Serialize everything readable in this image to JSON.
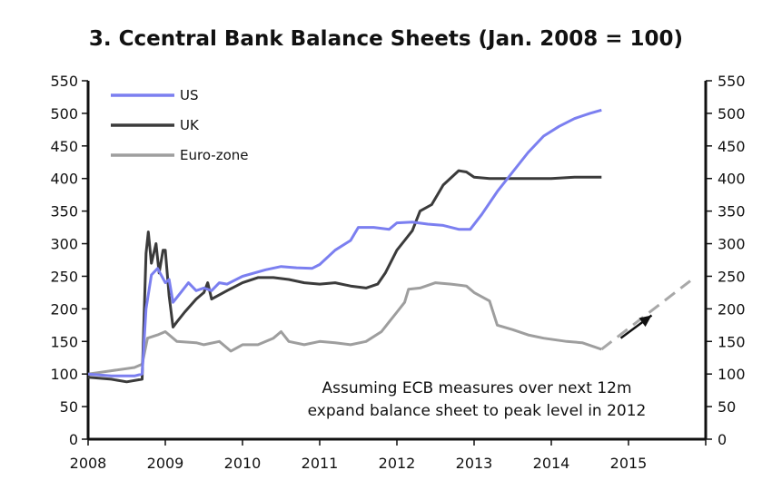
{
  "chart_data": {
    "type": "line",
    "title": "3. Ccentral Bank Balance Sheets (Jan. 2008 = 100)",
    "xlabel": "",
    "ylabel": "",
    "xlim": [
      2008,
      2016
    ],
    "ylim": [
      0,
      550
    ],
    "x_ticks": [
      "2008",
      "2009",
      "2010",
      "2011",
      "2012",
      "2013",
      "2014",
      "2015"
    ],
    "y_ticks": [
      "0",
      "50",
      "100",
      "150",
      "200",
      "250",
      "300",
      "350",
      "400",
      "450",
      "500",
      "550"
    ],
    "y_ticks_right": [
      "0",
      "50",
      "100",
      "150",
      "200",
      "250",
      "300",
      "350",
      "400",
      "450",
      "500",
      "550"
    ],
    "legend_position": "top-left",
    "grid": false,
    "series": [
      {
        "name": "US",
        "color": "#7b7ff0",
        "style": "solid",
        "points": [
          [
            2008.0,
            100
          ],
          [
            2008.3,
            97
          ],
          [
            2008.6,
            97
          ],
          [
            2008.7,
            100
          ],
          [
            2008.75,
            200
          ],
          [
            2008.82,
            252
          ],
          [
            2008.9,
            262
          ],
          [
            2009.0,
            240
          ],
          [
            2009.05,
            245
          ],
          [
            2009.1,
            210
          ],
          [
            2009.2,
            225
          ],
          [
            2009.3,
            240
          ],
          [
            2009.4,
            228
          ],
          [
            2009.5,
            232
          ],
          [
            2009.6,
            228
          ],
          [
            2009.7,
            240
          ],
          [
            2009.8,
            238
          ],
          [
            2010.0,
            250
          ],
          [
            2010.3,
            260
          ],
          [
            2010.5,
            265
          ],
          [
            2010.7,
            263
          ],
          [
            2010.9,
            262
          ],
          [
            2011.0,
            268
          ],
          [
            2011.2,
            290
          ],
          [
            2011.4,
            305
          ],
          [
            2011.5,
            325
          ],
          [
            2011.7,
            325
          ],
          [
            2011.9,
            322
          ],
          [
            2012.0,
            332
          ],
          [
            2012.2,
            333
          ],
          [
            2012.4,
            330
          ],
          [
            2012.6,
            328
          ],
          [
            2012.8,
            322
          ],
          [
            2012.95,
            322
          ],
          [
            2013.1,
            345
          ],
          [
            2013.3,
            380
          ],
          [
            2013.5,
            410
          ],
          [
            2013.7,
            440
          ],
          [
            2013.9,
            465
          ],
          [
            2014.1,
            480
          ],
          [
            2014.3,
            492
          ],
          [
            2014.5,
            500
          ],
          [
            2014.65,
            505
          ]
        ]
      },
      {
        "name": "UK",
        "color": "#3b3b3b",
        "style": "solid",
        "points": [
          [
            2008.0,
            95
          ],
          [
            2008.3,
            92
          ],
          [
            2008.5,
            88
          ],
          [
            2008.7,
            92
          ],
          [
            2008.75,
            285
          ],
          [
            2008.78,
            318
          ],
          [
            2008.82,
            270
          ],
          [
            2008.88,
            300
          ],
          [
            2008.92,
            255
          ],
          [
            2008.97,
            290
          ],
          [
            2009.0,
            290
          ],
          [
            2009.05,
            220
          ],
          [
            2009.1,
            172
          ],
          [
            2009.15,
            180
          ],
          [
            2009.25,
            195
          ],
          [
            2009.4,
            215
          ],
          [
            2009.5,
            225
          ],
          [
            2009.55,
            240
          ],
          [
            2009.6,
            215
          ],
          [
            2009.8,
            228
          ],
          [
            2010.0,
            240
          ],
          [
            2010.2,
            248
          ],
          [
            2010.4,
            248
          ],
          [
            2010.6,
            245
          ],
          [
            2010.8,
            240
          ],
          [
            2011.0,
            238
          ],
          [
            2011.2,
            240
          ],
          [
            2011.4,
            235
          ],
          [
            2011.6,
            232
          ],
          [
            2011.75,
            238
          ],
          [
            2011.85,
            255
          ],
          [
            2012.0,
            290
          ],
          [
            2012.1,
            305
          ],
          [
            2012.2,
            320
          ],
          [
            2012.3,
            350
          ],
          [
            2012.45,
            360
          ],
          [
            2012.6,
            390
          ],
          [
            2012.8,
            412
          ],
          [
            2012.9,
            410
          ],
          [
            2013.0,
            402
          ],
          [
            2013.2,
            400
          ],
          [
            2013.5,
            400
          ],
          [
            2013.8,
            400
          ],
          [
            2014.0,
            400
          ],
          [
            2014.3,
            402
          ],
          [
            2014.65,
            402
          ]
        ]
      },
      {
        "name": "Euro-zone",
        "color": "#9e9e9e",
        "style": "solid",
        "points": [
          [
            2008.0,
            100
          ],
          [
            2008.3,
            105
          ],
          [
            2008.6,
            110
          ],
          [
            2008.7,
            115
          ],
          [
            2008.77,
            155
          ],
          [
            2008.9,
            160
          ],
          [
            2009.0,
            165
          ],
          [
            2009.15,
            150
          ],
          [
            2009.4,
            148
          ],
          [
            2009.5,
            145
          ],
          [
            2009.7,
            150
          ],
          [
            2009.85,
            135
          ],
          [
            2010.0,
            145
          ],
          [
            2010.2,
            145
          ],
          [
            2010.4,
            155
          ],
          [
            2010.5,
            165
          ],
          [
            2010.6,
            150
          ],
          [
            2010.8,
            145
          ],
          [
            2011.0,
            150
          ],
          [
            2011.2,
            148
          ],
          [
            2011.4,
            145
          ],
          [
            2011.6,
            150
          ],
          [
            2011.8,
            165
          ],
          [
            2011.9,
            180
          ],
          [
            2012.0,
            195
          ],
          [
            2012.1,
            210
          ],
          [
            2012.15,
            230
          ],
          [
            2012.3,
            232
          ],
          [
            2012.5,
            240
          ],
          [
            2012.7,
            238
          ],
          [
            2012.9,
            235
          ],
          [
            2013.0,
            225
          ],
          [
            2013.2,
            212
          ],
          [
            2013.3,
            175
          ],
          [
            2013.5,
            168
          ],
          [
            2013.7,
            160
          ],
          [
            2013.9,
            155
          ],
          [
            2014.2,
            150
          ],
          [
            2014.4,
            148
          ],
          [
            2014.6,
            140
          ],
          [
            2014.65,
            138
          ]
        ]
      },
      {
        "name": "",
        "color": "#a8a8a8",
        "style": "dashed",
        "points": [
          [
            2014.65,
            138
          ],
          [
            2015.8,
            243
          ]
        ]
      }
    ],
    "annotation": {
      "lines": [
        "Assuming ECB measures over next 12m",
        "expand balance sheet to peak level in 2012"
      ],
      "arrow_from": [
        2014.9,
        155
      ],
      "arrow_to": [
        2015.3,
        190
      ]
    }
  }
}
